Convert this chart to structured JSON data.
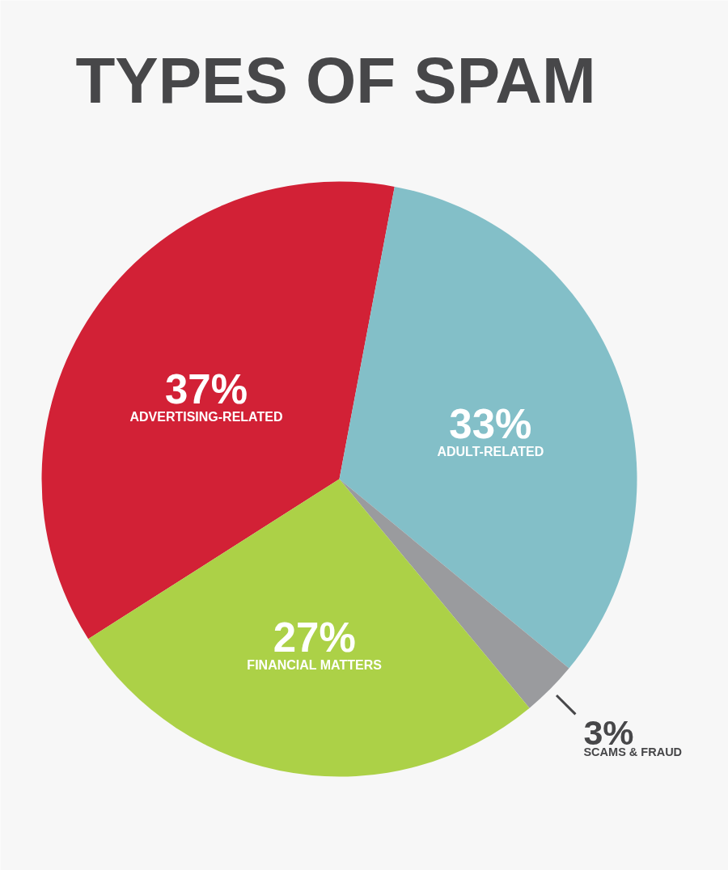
{
  "chart_data": {
    "type": "pie",
    "title": "TYPES OF SPAM",
    "categories": [
      "ADVERTISING-RELATED",
      "ADULT-RELATED",
      "SCAMS & FRAUD",
      "FINANCIAL MATTERS"
    ],
    "values": [
      37,
      33,
      3,
      27
    ],
    "value_labels": [
      "37%",
      "33%",
      "3%",
      "27%"
    ],
    "colors": [
      "#d22136",
      "#83bfc8",
      "#9a9b9e",
      "#acd147"
    ]
  }
}
